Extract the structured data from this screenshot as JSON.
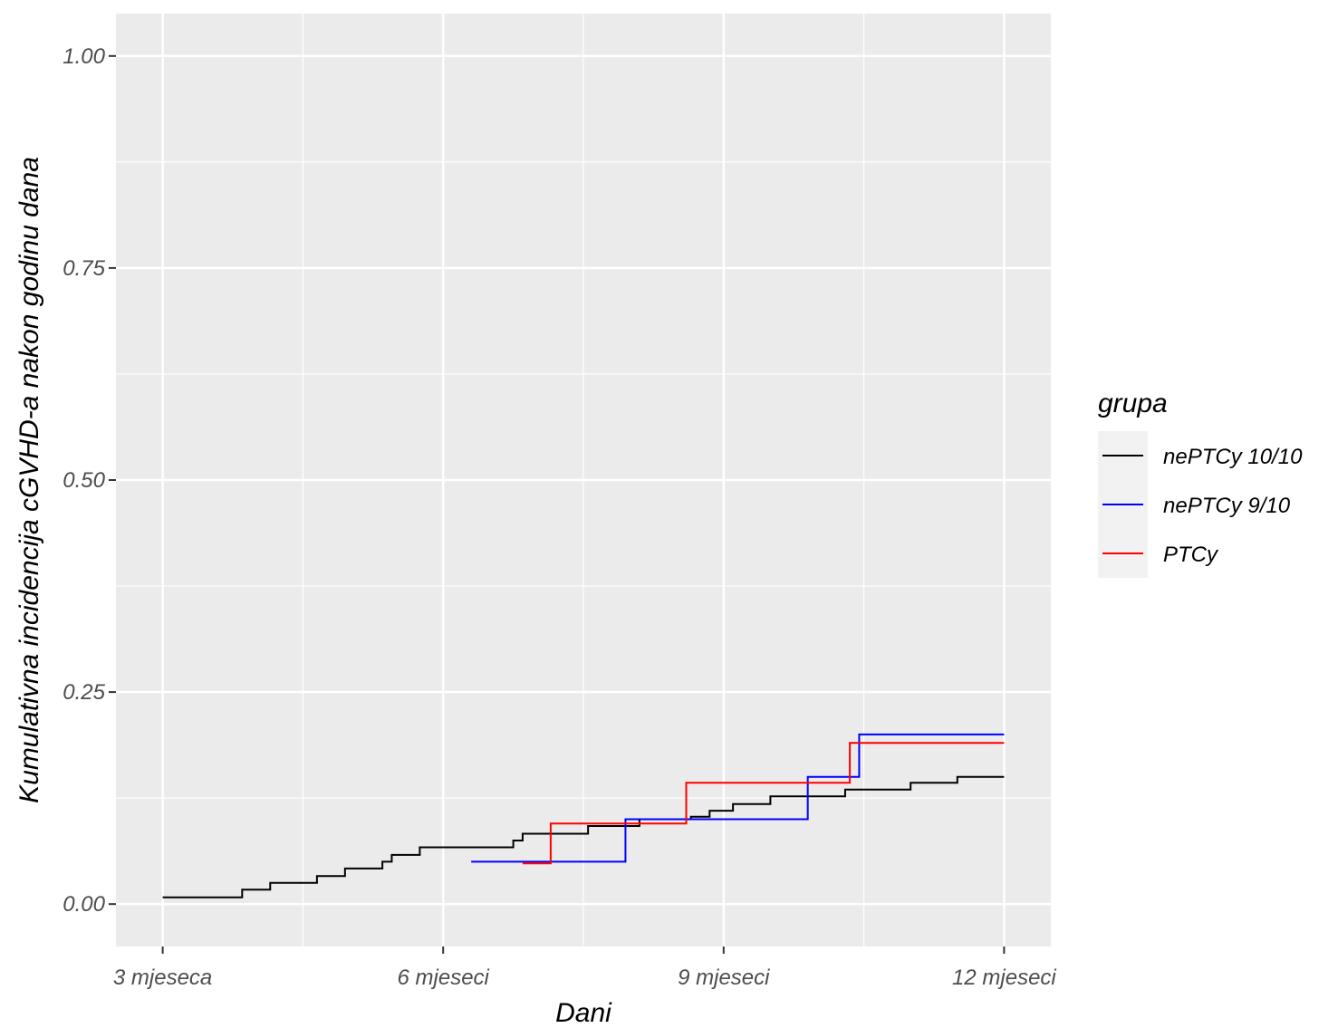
{
  "chart_data": {
    "type": "line",
    "step": true,
    "title": "",
    "xlabel": "Dani",
    "ylabel": "Kumulativna incidencija cGVHD-a nakon godinu dana",
    "xlim": [
      2.5,
      12.5
    ],
    "ylim": [
      -0.05,
      1.05
    ],
    "x_ticks": [
      3,
      6,
      9,
      12
    ],
    "x_tick_labels": [
      "3 mjeseca",
      "6 mjeseci",
      "9 mjeseci",
      "12 mjeseci"
    ],
    "y_ticks": [
      0,
      0.25,
      0.5,
      0.75,
      1
    ],
    "y_tick_labels": [
      "0.00",
      "0.25",
      "0.50",
      "0.75",
      "1.00"
    ],
    "grid": true,
    "legend": {
      "title": "grupa",
      "position": "right"
    },
    "series": [
      {
        "name": "nePTCy 10/10",
        "color": "#000000",
        "x": [
          3.0,
          3.85,
          4.15,
          4.65,
          4.95,
          5.35,
          5.45,
          5.75,
          6.75,
          6.85,
          7.2,
          7.55,
          8.1,
          8.65,
          8.85,
          9.1,
          9.5,
          10.3,
          11.0,
          11.5,
          11.7,
          12.0
        ],
        "y": [
          0.008,
          0.017,
          0.025,
          0.033,
          0.042,
          0.05,
          0.058,
          0.067,
          0.075,
          0.083,
          0.083,
          0.092,
          0.1,
          0.103,
          0.11,
          0.118,
          0.127,
          0.135,
          0.143,
          0.15,
          0.15,
          0.15
        ]
      },
      {
        "name": "nePTCy 9/10",
        "color": "#0000ff",
        "x": [
          6.3,
          7.95,
          9.9,
          10.45,
          12.0
        ],
        "y": [
          0.05,
          0.1,
          0.15,
          0.2,
          0.2
        ]
      },
      {
        "name": "PTCy",
        "color": "#ff0000",
        "x": [
          6.85,
          7.15,
          8.6,
          10.35,
          12.0
        ],
        "y": [
          0.048,
          0.095,
          0.143,
          0.19,
          0.19
        ]
      }
    ]
  }
}
